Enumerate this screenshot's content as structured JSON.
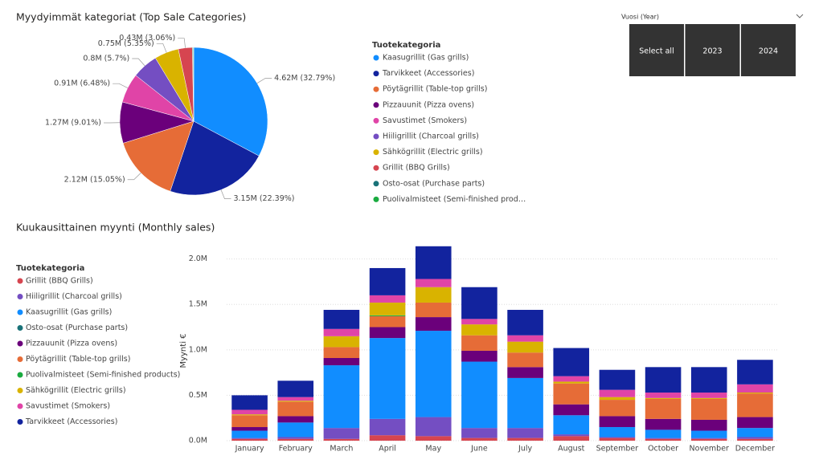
{
  "chart_data": [
    {
      "type": "pie",
      "title": "Myydyimmät kategoriat (Top Sale Categories)",
      "legend_title": "Tuotekategoria",
      "categories": [
        "Kaasugrillit (Gas grills)",
        "Tarvikkeet (Accessories)",
        "Pöytägrillit (Table-top grills)",
        "Pizzauunit (Pizza ovens)",
        "Savustimet (Smokers)",
        "Hiiligrillit (Charcoal grills)",
        "Sähkögrillit (Electric grills)",
        "Grillit (BBQ Grills)",
        "Osto-osat (Purchase parts)",
        "Puolivalmisteet (Semi-finished prod…"
      ],
      "values": [
        4.62,
        3.15,
        2.12,
        1.27,
        0.91,
        0.8,
        0.75,
        0.43,
        0.02,
        0.02
      ],
      "value_labels": [
        "4.62M (32.79%)",
        "3.15M (22.39%)",
        "2.12M (15.05%)",
        "1.27M (9.01%)",
        "0.91M (6.48%)",
        "0.8M (5.7%)",
        "0.75M (5.35%)",
        "0.43M (3.06%)",
        null,
        null
      ],
      "colors": [
        "#118DFF",
        "#12239E",
        "#E66C37",
        "#6B007B",
        "#E044A7",
        "#744EC2",
        "#D9B300",
        "#D64550",
        "#197278",
        "#1AAB40"
      ]
    },
    {
      "type": "stacked_bar",
      "title": "Kuukausittainen myynti (Monthly sales)",
      "legend_title": "Tuotekategoria",
      "y_label": "Myynti €",
      "categories": [
        "January",
        "February",
        "March",
        "April",
        "May",
        "June",
        "July",
        "August",
        "September",
        "October",
        "November",
        "December"
      ],
      "ylim": [
        0,
        2.2
      ],
      "yticks": [
        {
          "value": 0,
          "label": "0.0M"
        },
        {
          "value": 0.5,
          "label": "0.5M"
        },
        {
          "value": 1,
          "label": "1.0M"
        },
        {
          "value": 1.5,
          "label": "1.5M"
        },
        {
          "value": 2,
          "label": "2.0M"
        }
      ],
      "grid": true,
      "series": [
        {
          "name": "Grillit (BBQ Grills)",
          "color": "#D64550",
          "values": [
            0.02,
            0.02,
            0.02,
            0.06,
            0.05,
            0.03,
            0.03,
            0.05,
            0.03,
            0.02,
            0.02,
            0.02
          ]
        },
        {
          "name": "Hiiligrillit (Charcoal grills)",
          "color": "#744EC2",
          "values": [
            0.01,
            0.02,
            0.12,
            0.18,
            0.21,
            0.11,
            0.11,
            0.02,
            0.01,
            0.01,
            0.01,
            0.02
          ]
        },
        {
          "name": "Kaasugrillit (Gas grills)",
          "color": "#118DFF",
          "values": [
            0.08,
            0.16,
            0.69,
            0.89,
            0.95,
            0.73,
            0.55,
            0.21,
            0.11,
            0.09,
            0.08,
            0.1
          ]
        },
        {
          "name": "Osto-osat (Purchase parts)",
          "color": "#197278",
          "values": [
            0,
            0,
            0,
            0,
            0,
            0,
            0,
            0,
            0,
            0,
            0,
            0
          ]
        },
        {
          "name": "Pizzauunit (Pizza ovens)",
          "color": "#6B007B",
          "values": [
            0.04,
            0.07,
            0.08,
            0.12,
            0.15,
            0.12,
            0.12,
            0.12,
            0.12,
            0.12,
            0.12,
            0.12
          ]
        },
        {
          "name": "Pöytägrillit (Table-top grills)",
          "color": "#E66C37",
          "values": [
            0.13,
            0.16,
            0.12,
            0.12,
            0.16,
            0.17,
            0.16,
            0.23,
            0.18,
            0.22,
            0.23,
            0.26
          ]
        },
        {
          "name": "Puolivalmisteet (Semi-finished products)",
          "color": "#1AAB40",
          "values": [
            0,
            0,
            0,
            0.01,
            0,
            0,
            0,
            0,
            0,
            0,
            0,
            0
          ]
        },
        {
          "name": "Sähkögrillit (Electric grills)",
          "color": "#D9B300",
          "values": [
            0.01,
            0.01,
            0.12,
            0.14,
            0.17,
            0.12,
            0.12,
            0.02,
            0.03,
            0.01,
            0.01,
            0.01
          ]
        },
        {
          "name": "Savustimet (Smokers)",
          "color": "#E044A7",
          "values": [
            0.05,
            0.04,
            0.08,
            0.08,
            0.09,
            0.06,
            0.07,
            0.06,
            0.08,
            0.06,
            0.06,
            0.09
          ]
        },
        {
          "name": "Tarvikkeet (Accessories)",
          "color": "#12239E",
          "values": [
            0.16,
            0.18,
            0.21,
            0.3,
            0.36,
            0.35,
            0.28,
            0.31,
            0.22,
            0.28,
            0.28,
            0.27
          ]
        }
      ]
    }
  ],
  "slicer": {
    "title": "Vuosi (Year)",
    "items": [
      "Select all",
      "2023",
      "2024"
    ]
  }
}
